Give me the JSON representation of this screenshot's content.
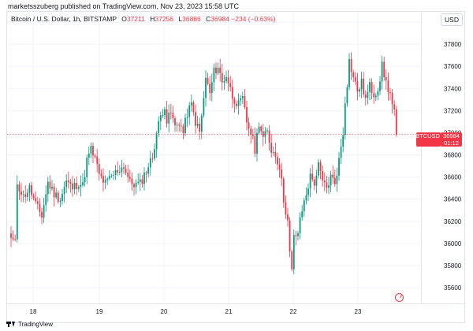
{
  "header": {
    "author_line": "marketsszuberg published on TradingView.com, Nov 23, 2023 15:58 UTC"
  },
  "legend": {
    "symbol": "Bitcoin / U.S. Dollar, 1h, BITSTAMP",
    "open_label": "O",
    "open": "37211",
    "high_label": "H",
    "high": "37256",
    "low_label": "L",
    "low": "36886",
    "close_label": "C",
    "close": "36984",
    "change": "−234 (−0.63%)"
  },
  "currency_button": "USD",
  "price_tag": {
    "symbol": "BTCUSD",
    "price": "36984",
    "countdown": "01:12"
  },
  "footer": {
    "brand": "TradingView"
  },
  "colors": {
    "up": "#089981",
    "down": "#f23645",
    "grid": "#f0f3fa",
    "axis_text": "#131722"
  },
  "icons": [
    "replay-icon",
    "tradingview-logo-icon"
  ],
  "chart_data": {
    "type": "candlestick",
    "title": "Bitcoin / U.S. Dollar, 1h, BITSTAMP",
    "x_ticks": [
      "18",
      "19",
      "20",
      "21",
      "22",
      "23"
    ],
    "y_ticks": [
      35600,
      35800,
      36000,
      36200,
      36400,
      36600,
      36800,
      37000,
      37200,
      37400,
      37600,
      37800,
      38000
    ],
    "ylim": [
      35500,
      38050
    ],
    "last_price": 36984,
    "grid": true,
    "path": [
      [
        0,
        36050
      ],
      [
        2,
        36000
      ],
      [
        3,
        36550
      ],
      [
        6,
        36420
      ],
      [
        9,
        36500
      ],
      [
        12,
        36350
      ],
      [
        15,
        36250
      ],
      [
        18,
        36550
      ],
      [
        21,
        36450
      ],
      [
        24,
        36400
      ],
      [
        27,
        36560
      ],
      [
        30,
        36500
      ],
      [
        33,
        36550
      ],
      [
        35,
        36520
      ],
      [
        37,
        36750
      ],
      [
        39,
        36850
      ],
      [
        41,
        36760
      ],
      [
        43,
        36620
      ],
      [
        46,
        36540
      ],
      [
        49,
        36600
      ],
      [
        52,
        36660
      ],
      [
        55,
        36700
      ],
      [
        58,
        36550
      ],
      [
        61,
        36530
      ],
      [
        63,
        36540
      ],
      [
        65,
        36620
      ],
      [
        67,
        36700
      ],
      [
        69,
        36780
      ],
      [
        71,
        37000
      ],
      [
        73,
        37150
      ],
      [
        75,
        37250
      ],
      [
        76,
        37100
      ],
      [
        78,
        37180
      ],
      [
        80,
        37050
      ],
      [
        82,
        37100
      ],
      [
        84,
        37000
      ],
      [
        86,
        37180
      ],
      [
        88,
        37250
      ],
      [
        90,
        37100
      ],
      [
        92,
        37000
      ],
      [
        94,
        37300
      ],
      [
        95,
        37500
      ],
      [
        97,
        37350
      ],
      [
        99,
        37550
      ],
      [
        101,
        37600
      ],
      [
        103,
        37450
      ],
      [
        105,
        37520
      ],
      [
        108,
        37330
      ],
      [
        111,
        37250
      ],
      [
        113,
        37300
      ],
      [
        115,
        37100
      ],
      [
        117,
        37000
      ],
      [
        119,
        36850
      ],
      [
        121,
        37100
      ],
      [
        123,
        36950
      ],
      [
        125,
        37000
      ],
      [
        127,
        36850
      ],
      [
        129,
        36800
      ],
      [
        131,
        36700
      ],
      [
        133,
        36400
      ],
      [
        135,
        36200
      ],
      [
        136,
        35900
      ],
      [
        137,
        35750
      ],
      [
        138,
        36050
      ],
      [
        140,
        36100
      ],
      [
        142,
        36300
      ],
      [
        144,
        36450
      ],
      [
        146,
        36600
      ],
      [
        148,
        36550
      ],
      [
        150,
        36700
      ],
      [
        152,
        36550
      ],
      [
        154,
        36500
      ],
      [
        156,
        36600
      ],
      [
        158,
        36550
      ],
      [
        160,
        36750
      ],
      [
        162,
        37000
      ],
      [
        163,
        37300
      ],
      [
        164,
        37450
      ],
      [
        165,
        37650
      ],
      [
        167,
        37500
      ],
      [
        169,
        37380
      ],
      [
        171,
        37450
      ],
      [
        173,
        37300
      ],
      [
        175,
        37420
      ],
      [
        177,
        37350
      ],
      [
        179,
        37400
      ],
      [
        181,
        37600
      ],
      [
        183,
        37450
      ],
      [
        185,
        37350
      ],
      [
        186,
        37250
      ],
      [
        187,
        37211
      ],
      [
        188,
        36984
      ]
    ]
  }
}
